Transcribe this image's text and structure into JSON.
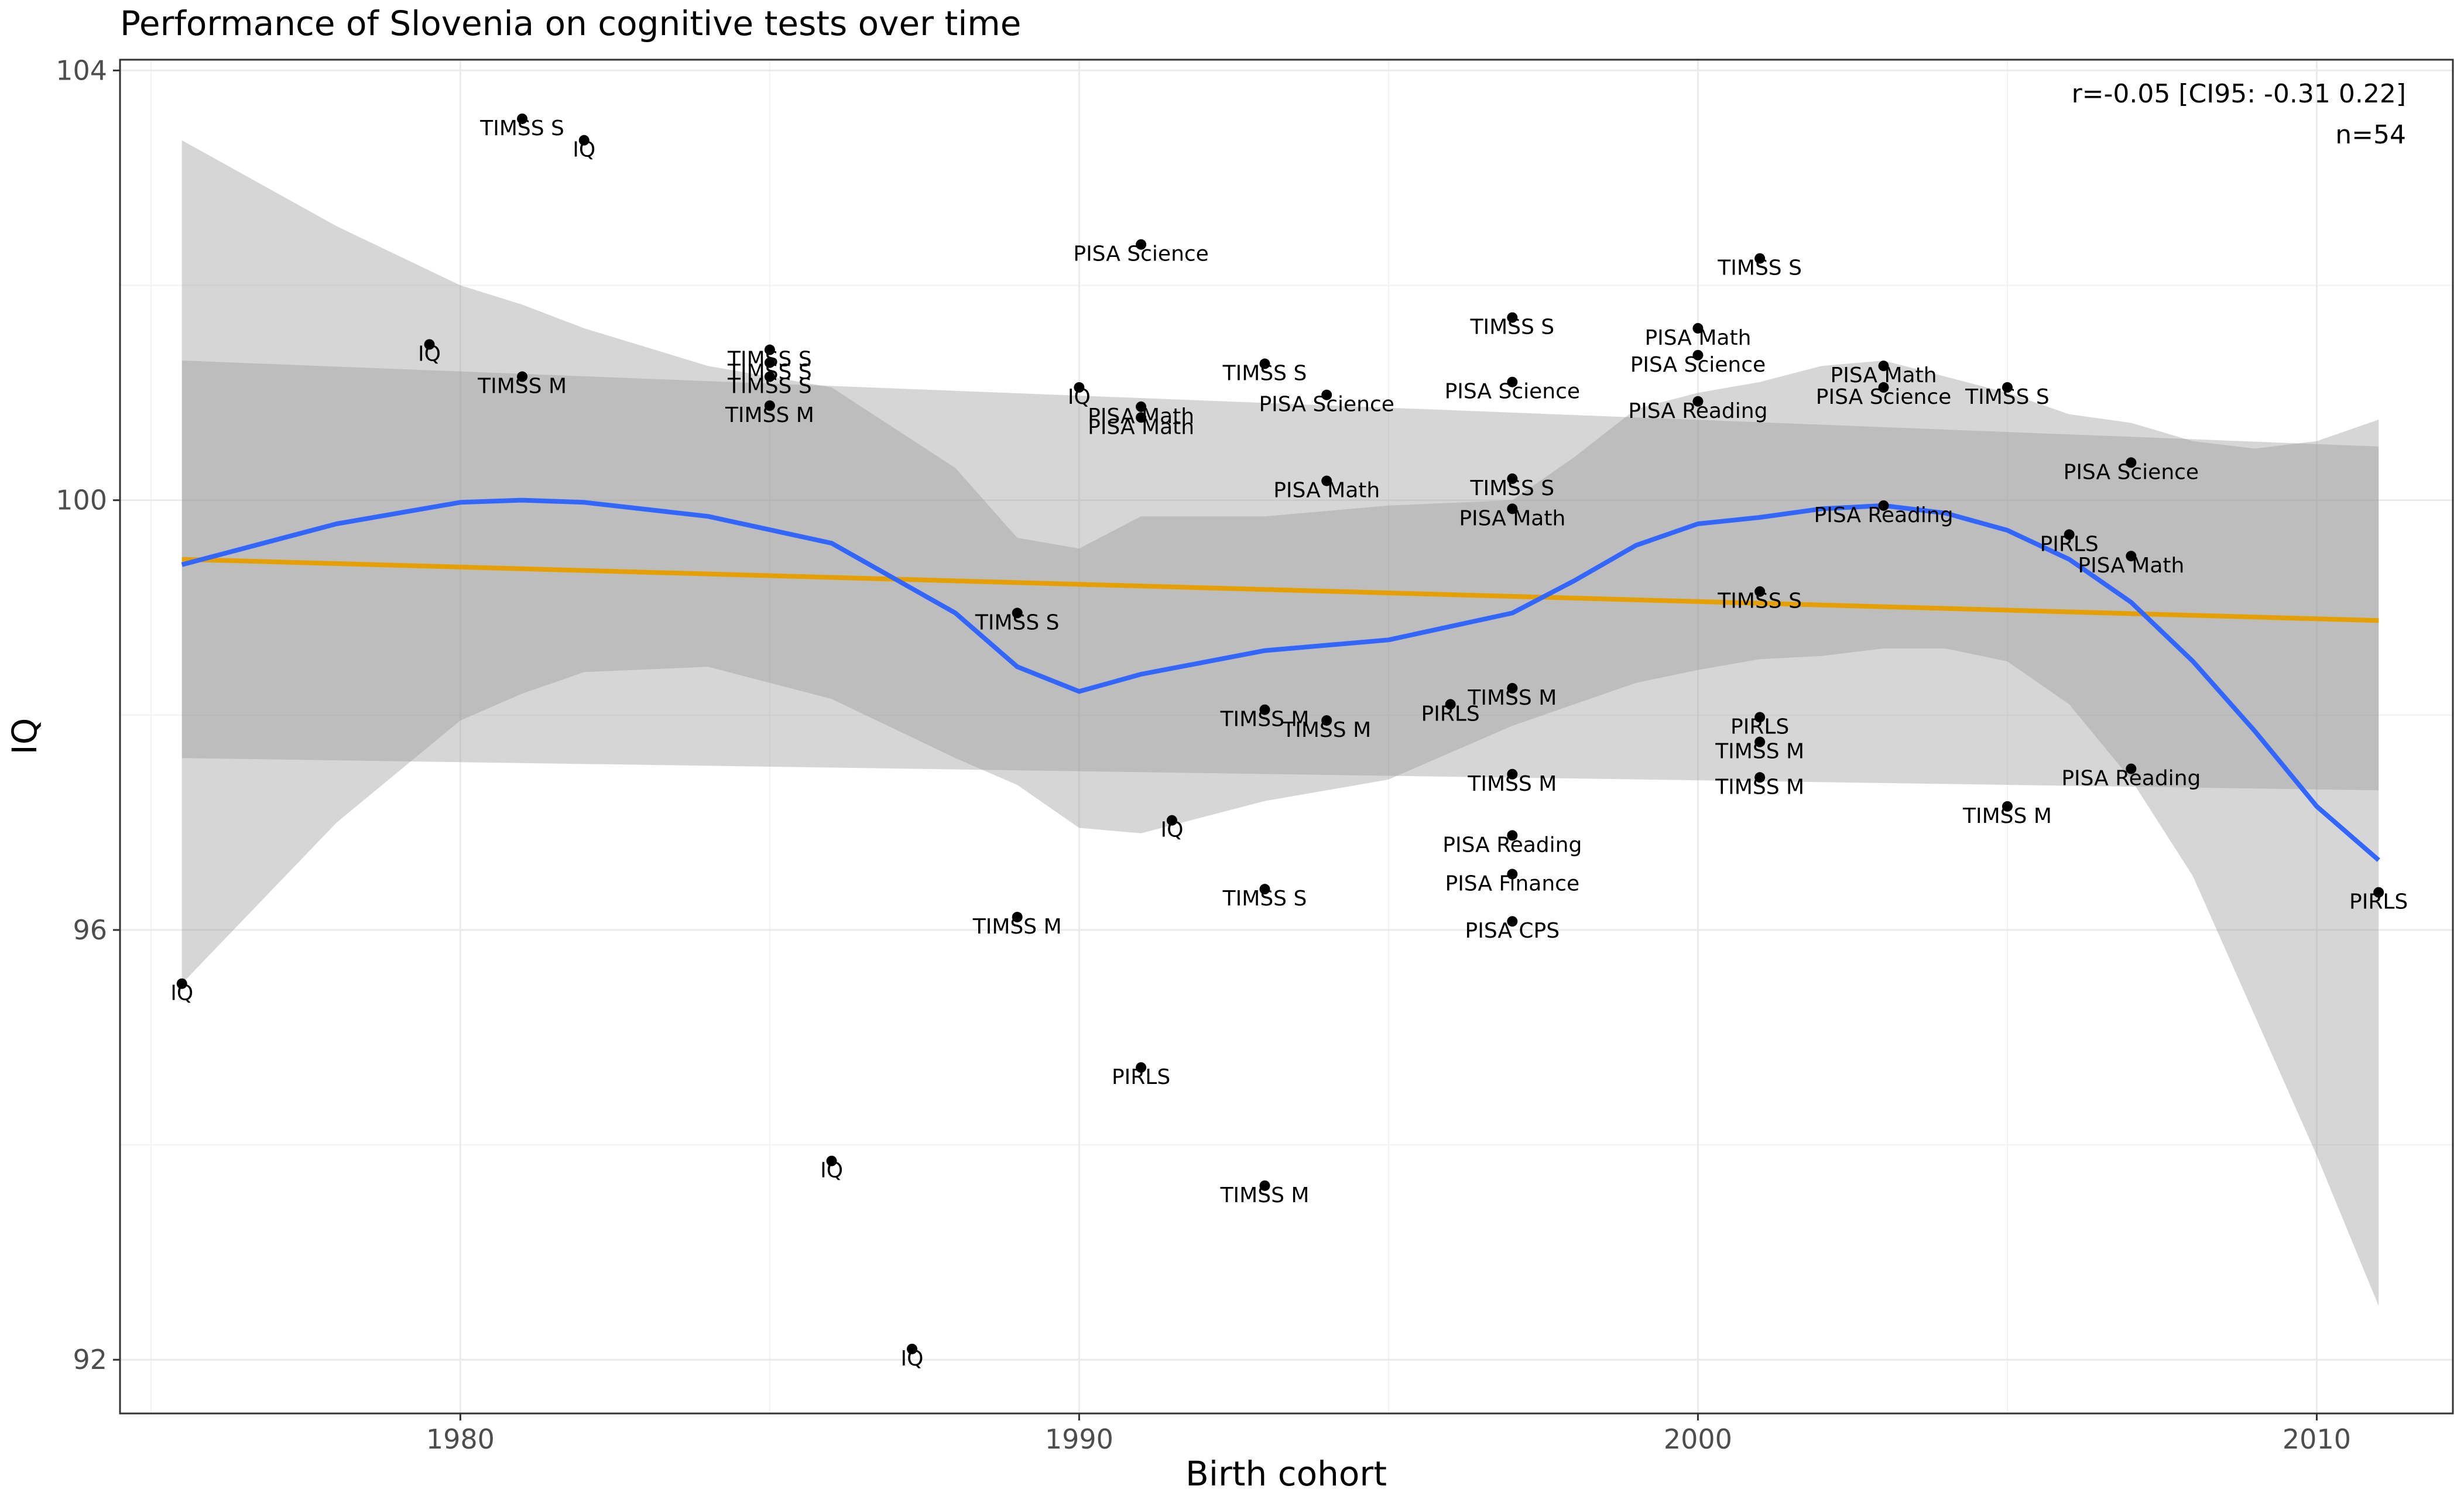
{
  "chart_data": {
    "type": "scatter",
    "title": "Performance of Slovenia on cognitive tests over time",
    "xlabel": "Birth cohort",
    "ylabel": "IQ",
    "xlim": [
      1974.5,
      2012.2
    ],
    "ylim": [
      91.5,
      104.1
    ],
    "x_ticks": [
      1980,
      1990,
      2000,
      2010
    ],
    "y_ticks": [
      92,
      96,
      100,
      104
    ],
    "grid": true,
    "annotation": {
      "stat": "r=-0.05 [CI95: -0.31 0.22]",
      "n": "n=54",
      "placement": "top-right"
    },
    "points": [
      {
        "x": 1975.5,
        "y": 95.5,
        "label": "IQ"
      },
      {
        "x": 1979.5,
        "y": 101.45,
        "label": "IQ"
      },
      {
        "x": 1981,
        "y": 103.55,
        "label": "TIMSS S"
      },
      {
        "x": 1981,
        "y": 101.15,
        "label": "TIMSS M"
      },
      {
        "x": 1982,
        "y": 103.35,
        "label": "IQ"
      },
      {
        "x": 1985,
        "y": 101.4,
        "label": "TIMSS S"
      },
      {
        "x": 1985,
        "y": 101.28,
        "label": "TIMSS S"
      },
      {
        "x": 1985,
        "y": 101.15,
        "label": "TIMSS S"
      },
      {
        "x": 1985,
        "y": 100.88,
        "label": "TIMSS M"
      },
      {
        "x": 1986,
        "y": 93.85,
        "label": "IQ"
      },
      {
        "x": 1987.3,
        "y": 92.1,
        "label": "IQ"
      },
      {
        "x": 1989,
        "y": 98.95,
        "label": "TIMSS S"
      },
      {
        "x": 1989,
        "y": 96.12,
        "label": "TIMSS M"
      },
      {
        "x": 1990,
        "y": 101.05,
        "label": "IQ"
      },
      {
        "x": 1991,
        "y": 102.38,
        "label": "PISA Science"
      },
      {
        "x": 1991,
        "y": 100.87,
        "label": "PISA Math"
      },
      {
        "x": 1991,
        "y": 100.77,
        "label": "PISA Math"
      },
      {
        "x": 1991,
        "y": 94.72,
        "label": "PIRLS"
      },
      {
        "x": 1991.5,
        "y": 97.02,
        "label": "IQ"
      },
      {
        "x": 1993,
        "y": 101.27,
        "label": "TIMSS S"
      },
      {
        "x": 1993,
        "y": 98.05,
        "label": "TIMSS M"
      },
      {
        "x": 1993,
        "y": 96.38,
        "label": "TIMSS S"
      },
      {
        "x": 1993,
        "y": 93.62,
        "label": "TIMSS M"
      },
      {
        "x": 1994,
        "y": 100.98,
        "label": "PISA Science"
      },
      {
        "x": 1994,
        "y": 100.18,
        "label": "PISA Math"
      },
      {
        "x": 1994,
        "y": 97.95,
        "label": "TIMSS M"
      },
      {
        "x": 1996,
        "y": 98.1,
        "label": "PIRLS"
      },
      {
        "x": 1997,
        "y": 101.7,
        "label": "TIMSS S"
      },
      {
        "x": 1997,
        "y": 101.1,
        "label": "PISA Science"
      },
      {
        "x": 1997,
        "y": 100.2,
        "label": "TIMSS S"
      },
      {
        "x": 1997,
        "y": 99.92,
        "label": "PISA Math"
      },
      {
        "x": 1997,
        "y": 98.25,
        "label": "TIMSS M"
      },
      {
        "x": 1997,
        "y": 97.45,
        "label": "TIMSS M"
      },
      {
        "x": 1997,
        "y": 96.88,
        "label": "PISA Reading"
      },
      {
        "x": 1997,
        "y": 96.52,
        "label": "PISA Finance"
      },
      {
        "x": 1997,
        "y": 96.08,
        "label": "PISA CPS"
      },
      {
        "x": 2000,
        "y": 101.6,
        "label": "PISA Math"
      },
      {
        "x": 2000,
        "y": 101.35,
        "label": "PISA Science"
      },
      {
        "x": 2000,
        "y": 100.92,
        "label": "PISA Reading"
      },
      {
        "x": 2001,
        "y": 102.25,
        "label": "TIMSS S"
      },
      {
        "x": 2001,
        "y": 99.15,
        "label": "TIMSS S"
      },
      {
        "x": 2001,
        "y": 97.98,
        "label": "PIRLS"
      },
      {
        "x": 2001,
        "y": 97.75,
        "label": "TIMSS M"
      },
      {
        "x": 2001,
        "y": 97.42,
        "label": "TIMSS M"
      },
      {
        "x": 2003,
        "y": 101.25,
        "label": "PISA Math"
      },
      {
        "x": 2003,
        "y": 101.05,
        "label": "PISA Science"
      },
      {
        "x": 2003,
        "y": 99.95,
        "label": "PISA Reading"
      },
      {
        "x": 2005,
        "y": 101.05,
        "label": "TIMSS S"
      },
      {
        "x": 2005,
        "y": 97.15,
        "label": "TIMSS M"
      },
      {
        "x": 2006,
        "y": 99.68,
        "label": "PIRLS"
      },
      {
        "x": 2007,
        "y": 100.35,
        "label": "PISA Science"
      },
      {
        "x": 2007,
        "y": 99.48,
        "label": "PISA Math"
      },
      {
        "x": 2007,
        "y": 97.5,
        "label": "PISA Reading"
      },
      {
        "x": 2011,
        "y": 96.35,
        "label": "PIRLS"
      }
    ],
    "linear_fit": {
      "color": "#e69f00",
      "x": [
        1975.5,
        2011
      ],
      "y": [
        99.45,
        98.88
      ],
      "ci_lower": [
        97.6,
        97.3
      ],
      "ci_upper": [
        101.3,
        100.5
      ]
    },
    "loess_fit": {
      "color": "#3366ff",
      "x": [
        1975.5,
        1978,
        1980,
        1981,
        1982,
        1984,
        1986,
        1988,
        1989,
        1990,
        1991,
        1993,
        1995,
        1997,
        1998,
        1999,
        2000,
        2001,
        2002,
        2003,
        2004,
        2005,
        2006,
        2007,
        2008,
        2009,
        2010,
        2011
      ],
      "y": [
        99.4,
        99.78,
        99.98,
        100.0,
        99.98,
        99.85,
        99.6,
        98.95,
        98.45,
        98.22,
        98.38,
        98.6,
        98.7,
        98.95,
        99.25,
        99.58,
        99.78,
        99.84,
        99.92,
        99.95,
        99.88,
        99.72,
        99.45,
        99.05,
        98.5,
        97.85,
        97.15,
        96.65
      ],
      "ci_lower": [
        95.5,
        97.0,
        97.95,
        98.2,
        98.4,
        98.45,
        98.15,
        97.6,
        97.35,
        96.95,
        96.9,
        97.2,
        97.4,
        97.9,
        98.1,
        98.3,
        98.42,
        98.52,
        98.55,
        98.62,
        98.62,
        98.5,
        98.1,
        97.4,
        96.5,
        95.2,
        93.9,
        92.5
      ],
      "ci_upper": [
        103.35,
        102.55,
        102.0,
        101.82,
        101.6,
        101.25,
        101.05,
        100.3,
        99.65,
        99.55,
        99.85,
        99.85,
        99.95,
        100.0,
        100.4,
        100.85,
        101.0,
        101.1,
        101.25,
        101.3,
        101.15,
        101.0,
        100.8,
        100.72,
        100.55,
        100.48,
        100.55,
        100.75
      ]
    }
  }
}
